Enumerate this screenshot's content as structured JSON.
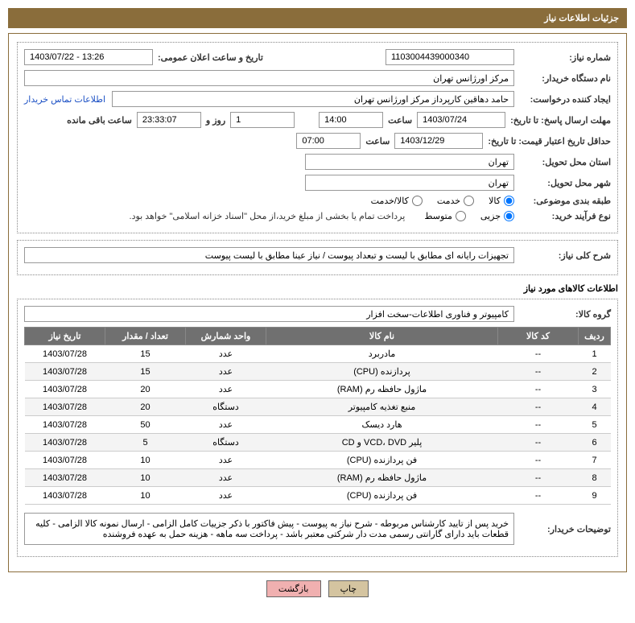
{
  "header": {
    "title": "جزئیات اطلاعات نیاز"
  },
  "fields": {
    "need_no_label": "شماره نیاز:",
    "need_no": "1103004439000340",
    "announce_label": "تاریخ و ساعت اعلان عمومی:",
    "announce": "1403/07/22 - 13:26",
    "buyer_org_label": "نام دستگاه خریدار:",
    "buyer_org": "مرکز اورژانس تهران",
    "requester_label": "ایجاد کننده درخواست:",
    "requester": "حامد دهاقین کارپرداز مرکز اورژانس تهران",
    "contact_link": "اطلاعات تماس خریدار",
    "deadline_label": "مهلت ارسال پاسخ: تا تاریخ:",
    "deadline_date": "1403/07/24",
    "time_label": "ساعت",
    "deadline_time": "14:00",
    "days": "1",
    "days_and": "روز و",
    "remaining": "23:33:07",
    "remaining_label": "ساعت باقی مانده",
    "validity_label": "حداقل تاریخ اعتبار قیمت: تا تاریخ:",
    "validity_date": "1403/12/29",
    "validity_time": "07:00",
    "province_label": "استان محل تحویل:",
    "province": "تهران",
    "city_label": "شهر محل تحویل:",
    "city": "تهران",
    "category_label": "طبقه بندی موضوعی:",
    "cat_goods": "کالا",
    "cat_service": "خدمت",
    "cat_both": "کالا/خدمت",
    "process_label": "نوع فرآیند خرید:",
    "proc_partial": "جزیی",
    "proc_medium": "متوسط",
    "proc_note": "پرداخت تمام یا بخشی از مبلغ خرید،از محل \"اسناد خزانه اسلامی\" خواهد بود.",
    "desc_label": "شرح کلی نیاز:",
    "desc": "تجهیزات رایانه ای مطابق با لیست و تبعداد پیوست / نیاز عینا مطابق با لیست پیوست",
    "goods_section": "اطلاعات کالاهای مورد نیاز",
    "group_label": "گروه کالا:",
    "group": "کامپیوتر و فناوری اطلاعات-سخت افزار",
    "buyer_notes_label": "توضیحات خریدار:",
    "buyer_notes": "خرید پس از تایید کارشناس مربوطه - شرح نیاز به پیوست - پیش فاکتور با ذکر جزییات کامل الزامی - ارسال نمونه کالا الزامی - کلیه قطعات باید دارای گارانتی رسمی مدت دار شرکتی معتبر باشد - پرداخت سه ماهه - هزینه حمل به عهده فروشنده"
  },
  "table": {
    "headers": {
      "idx": "ردیف",
      "code": "کد کالا",
      "name": "نام کالا",
      "unit": "واحد شمارش",
      "qty": "تعداد / مقدار",
      "date": "تاریخ نیاز"
    },
    "rows": [
      {
        "idx": "1",
        "code": "--",
        "name": "مادربرد",
        "unit": "عدد",
        "qty": "15",
        "date": "1403/07/28"
      },
      {
        "idx": "2",
        "code": "--",
        "name": "پردازنده (CPU)",
        "unit": "عدد",
        "qty": "15",
        "date": "1403/07/28"
      },
      {
        "idx": "3",
        "code": "--",
        "name": "ماژول حافظه رم (RAM)",
        "unit": "عدد",
        "qty": "20",
        "date": "1403/07/28"
      },
      {
        "idx": "4",
        "code": "--",
        "name": "منبع تغذیه کامپیوتر",
        "unit": "دستگاه",
        "qty": "20",
        "date": "1403/07/28"
      },
      {
        "idx": "5",
        "code": "--",
        "name": "هارد دیسک",
        "unit": "عدد",
        "qty": "50",
        "date": "1403/07/28"
      },
      {
        "idx": "6",
        "code": "--",
        "name": "پلیر VCD، DVD و CD",
        "unit": "دستگاه",
        "qty": "5",
        "date": "1403/07/28"
      },
      {
        "idx": "7",
        "code": "--",
        "name": "فن پردازنده (CPU)",
        "unit": "عدد",
        "qty": "10",
        "date": "1403/07/28"
      },
      {
        "idx": "8",
        "code": "--",
        "name": "ماژول حافظه رم (RAM)",
        "unit": "عدد",
        "qty": "10",
        "date": "1403/07/28"
      },
      {
        "idx": "9",
        "code": "--",
        "name": "فن پردازنده (CPU)",
        "unit": "عدد",
        "qty": "10",
        "date": "1403/07/28"
      }
    ]
  },
  "buttons": {
    "print": "چاپ",
    "back": "بازگشت"
  }
}
